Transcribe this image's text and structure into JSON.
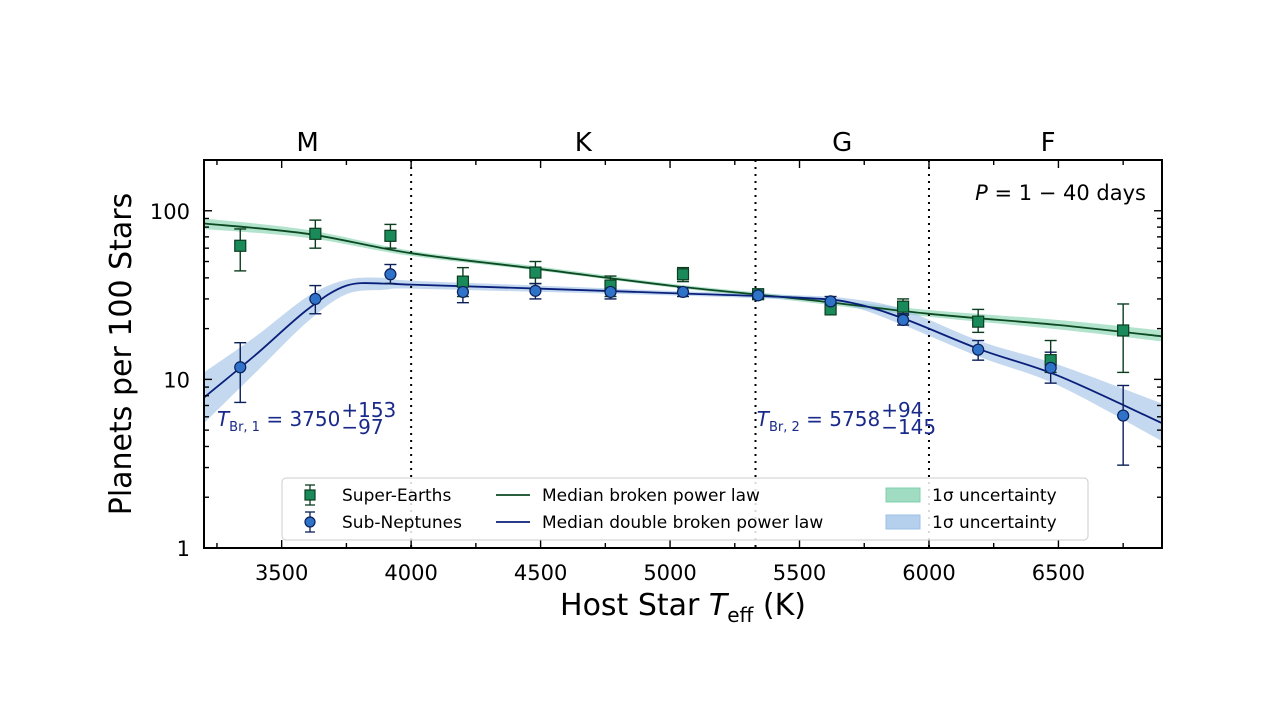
{
  "chart_data": {
    "type": "scatter",
    "xlabel_main": "Host Star ",
    "xlabel_T": "T",
    "xlabel_sub": "eff",
    "xlabel_unit": " (K)",
    "ylabel": "Planets per 100 Stars",
    "xlim": [
      3200,
      6900
    ],
    "ylim": [
      1,
      200
    ],
    "yscale": "log",
    "x_ticks": [
      3500,
      4000,
      4500,
      5000,
      5500,
      6000,
      6500
    ],
    "y_ticks": [
      {
        "value": 1,
        "label": "1"
      },
      {
        "value": 10,
        "label": "10"
      },
      {
        "value": 100,
        "label": "100"
      }
    ],
    "period_text": {
      "P": "P",
      "rest": " = 1 − 40 days"
    },
    "spectral_classes": [
      {
        "label": "M",
        "x": 3600
      },
      {
        "label": "K",
        "x": 4665
      },
      {
        "label": "G",
        "x": 5665
      },
      {
        "label": "F",
        "x": 6460
      }
    ],
    "class_boundaries": [
      4000,
      5330,
      6000
    ],
    "breaks": [
      {
        "T": "T",
        "sub": "Br, 1",
        "value": " = 3750",
        "plus": "+153",
        "minus": "−97",
        "x": 3250,
        "y": 5.3,
        "color": "#1a2a8a"
      },
      {
        "T": "T",
        "sub": "Br, 2",
        "value": " = 5758",
        "plus": "+94",
        "minus": "−145",
        "x": 5335,
        "y": 5.3,
        "color": "#1a2a8a"
      }
    ],
    "series": [
      {
        "name": "Super-Earths",
        "marker": "square",
        "color": "#1b8a5a",
        "edge": "#0b3d1f",
        "points": [
          {
            "x": 3340,
            "y": 62,
            "lo": 44,
            "hi": 78
          },
          {
            "x": 3630,
            "y": 73,
            "lo": 60,
            "hi": 88
          },
          {
            "x": 3920,
            "y": 71,
            "lo": 60,
            "hi": 83
          },
          {
            "x": 4200,
            "y": 38,
            "lo": 31,
            "hi": 46
          },
          {
            "x": 4480,
            "y": 43,
            "lo": 37,
            "hi": 50
          },
          {
            "x": 4770,
            "y": 36,
            "lo": 31,
            "hi": 41
          },
          {
            "x": 5050,
            "y": 42,
            "lo": 38,
            "hi": 46
          },
          {
            "x": 5340,
            "y": 32,
            "lo": 30,
            "hi": 34
          },
          {
            "x": 5620,
            "y": 26,
            "lo": 24.5,
            "hi": 28
          },
          {
            "x": 5900,
            "y": 27,
            "lo": 24,
            "hi": 30
          },
          {
            "x": 6190,
            "y": 22,
            "lo": 19,
            "hi": 26
          },
          {
            "x": 6470,
            "y": 13,
            "lo": 11,
            "hi": 17
          },
          {
            "x": 6750,
            "y": 19.5,
            "lo": 11,
            "hi": 28
          }
        ]
      },
      {
        "name": "Sub-Neptunes",
        "marker": "circle",
        "color": "#2f73c8",
        "edge": "#0b1f5a",
        "points": [
          {
            "x": 3340,
            "y": 11.8,
            "lo": 7.3,
            "hi": 16.5
          },
          {
            "x": 3630,
            "y": 30,
            "lo": 24.5,
            "hi": 36
          },
          {
            "x": 3920,
            "y": 42,
            "lo": 37,
            "hi": 48
          },
          {
            "x": 4200,
            "y": 33,
            "lo": 28.5,
            "hi": 38
          },
          {
            "x": 4480,
            "y": 33.5,
            "lo": 30,
            "hi": 37
          },
          {
            "x": 4770,
            "y": 33,
            "lo": 30,
            "hi": 36
          },
          {
            "x": 5050,
            "y": 33,
            "lo": 31,
            "hi": 35
          },
          {
            "x": 5340,
            "y": 31.5,
            "lo": 30,
            "hi": 33
          },
          {
            "x": 5620,
            "y": 29,
            "lo": 27,
            "hi": 31
          },
          {
            "x": 5900,
            "y": 22.5,
            "lo": 21,
            "hi": 24.5
          },
          {
            "x": 6190,
            "y": 15,
            "lo": 13,
            "hi": 17
          },
          {
            "x": 6470,
            "y": 11.7,
            "lo": 9.5,
            "hi": 14.5
          },
          {
            "x": 6750,
            "y": 6.1,
            "lo": 3.1,
            "hi": 9.2
          }
        ]
      }
    ],
    "fits": [
      {
        "name": "Median broken power law",
        "color": "#0d4a22",
        "band_name": "1σ uncertainty",
        "band_color": "#7fd0ac",
        "points": [
          {
            "x": 3200,
            "y": 84,
            "lo": 78,
            "hi": 90
          },
          {
            "x": 3600,
            "y": 73,
            "lo": 69,
            "hi": 77
          },
          {
            "x": 4000,
            "y": 56,
            "lo": 54,
            "hi": 58
          },
          {
            "x": 4500,
            "y": 45,
            "lo": 44,
            "hi": 46.5
          },
          {
            "x": 5000,
            "y": 36,
            "lo": 35.2,
            "hi": 37
          },
          {
            "x": 5500,
            "y": 30,
            "lo": 29,
            "hi": 31
          },
          {
            "x": 6000,
            "y": 24.5,
            "lo": 23.5,
            "hi": 25.8
          },
          {
            "x": 6500,
            "y": 21,
            "lo": 19.8,
            "hi": 22.5
          },
          {
            "x": 6900,
            "y": 18,
            "lo": 16.8,
            "hi": 19.5
          }
        ]
      },
      {
        "name": "Median double broken power law",
        "color": "#0a1f7a",
        "band_name": "1σ uncertainty",
        "band_color": "#9cc0e6",
        "points": [
          {
            "x": 3200,
            "y": 7.8,
            "lo": 5.5,
            "hi": 11
          },
          {
            "x": 3400,
            "y": 14,
            "lo": 11,
            "hi": 18
          },
          {
            "x": 3600,
            "y": 26,
            "lo": 22,
            "hi": 31
          },
          {
            "x": 3750,
            "y": 36,
            "lo": 32,
            "hi": 39
          },
          {
            "x": 3900,
            "y": 37,
            "lo": 34,
            "hi": 40
          },
          {
            "x": 4000,
            "y": 36.5,
            "lo": 34.5,
            "hi": 38.5
          },
          {
            "x": 4500,
            "y": 34.5,
            "lo": 33,
            "hi": 36
          },
          {
            "x": 5000,
            "y": 32.5,
            "lo": 31.5,
            "hi": 33.5
          },
          {
            "x": 5500,
            "y": 30.5,
            "lo": 29.5,
            "hi": 31.5
          },
          {
            "x": 5700,
            "y": 28.5,
            "lo": 27,
            "hi": 30
          },
          {
            "x": 5900,
            "y": 23,
            "lo": 21,
            "hi": 26
          },
          {
            "x": 6200,
            "y": 15,
            "lo": 13.5,
            "hi": 16.8
          },
          {
            "x": 6500,
            "y": 10.5,
            "lo": 9.2,
            "hi": 12.2
          },
          {
            "x": 6900,
            "y": 5.5,
            "lo": 4.3,
            "hi": 7.2
          }
        ]
      }
    ],
    "legend": [
      {
        "label": "Super-Earths",
        "kind": "marker-square",
        "color": "#1b8a5a",
        "edge": "#0b3d1f"
      },
      {
        "label": "Sub-Neptunes",
        "kind": "marker-circle",
        "color": "#2f73c8",
        "edge": "#0b1f5a"
      },
      {
        "label": "Median broken power law",
        "kind": "line",
        "color": "#0d4a22"
      },
      {
        "label": "Median double broken power law",
        "kind": "line",
        "color": "#0a1f7a"
      },
      {
        "label": "1σ uncertainty",
        "kind": "band",
        "color": "#7fd0ac"
      },
      {
        "label": "1σ uncertainty",
        "kind": "band",
        "color": "#9cc0e6"
      }
    ]
  }
}
